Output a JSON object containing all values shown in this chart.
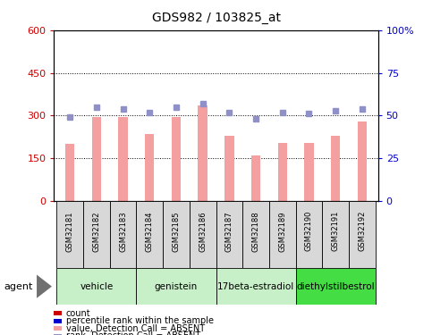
{
  "title": "GDS982 / 103825_at",
  "samples": [
    "GSM32181",
    "GSM32182",
    "GSM32183",
    "GSM32184",
    "GSM32185",
    "GSM32186",
    "GSM32187",
    "GSM32188",
    "GSM32189",
    "GSM32190",
    "GSM32191",
    "GSM32192"
  ],
  "bar_values": [
    200,
    295,
    295,
    235,
    295,
    335,
    230,
    160,
    205,
    205,
    230,
    280
  ],
  "dot_values": [
    49,
    55,
    54,
    52,
    55,
    57,
    52,
    48,
    52,
    51,
    53,
    54
  ],
  "bar_color": "#f4a0a0",
  "dot_color": "#9090c8",
  "groups": [
    {
      "label": "vehicle",
      "start": 0,
      "end": 3
    },
    {
      "label": "genistein",
      "start": 3,
      "end": 6
    },
    {
      "label": "17beta-estradiol",
      "start": 6,
      "end": 9
    },
    {
      "label": "diethylstilbestrol",
      "start": 9,
      "end": 12
    }
  ],
  "group_colors": [
    "#c8f0c8",
    "#c8f0c8",
    "#c8f0c8",
    "#44dd44"
  ],
  "ylim_left": [
    0,
    600
  ],
  "ylim_right": [
    0,
    100
  ],
  "yticks_left": [
    0,
    150,
    300,
    450,
    600
  ],
  "yticks_right": [
    0,
    25,
    50,
    75,
    100
  ],
  "ytick_labels_left": [
    "0",
    "150",
    "300",
    "450",
    "600"
  ],
  "ytick_labels_right": [
    "0",
    "25",
    "50",
    "75",
    "100%"
  ],
  "left_axis_color": "#cc0000",
  "right_axis_color": "#0000cc",
  "agent_label": "agent",
  "legend_colors": [
    "#cc0000",
    "#0000cc",
    "#f4a0a0",
    "#9090c8"
  ],
  "legend_labels": [
    "count",
    "percentile rank within the sample",
    "value, Detection Call = ABSENT",
    "rank, Detection Call = ABSENT"
  ]
}
